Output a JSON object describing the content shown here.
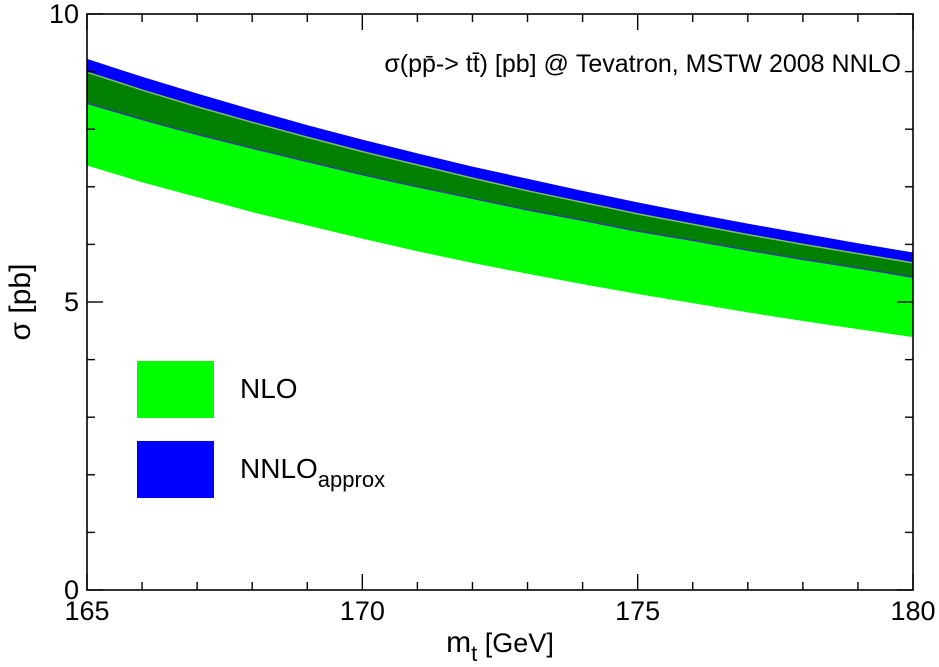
{
  "chart_data": {
    "type": "area",
    "title": "σ(pp̄-> tt̄) [pb] @ Tevatron, MSTW 2008 NNLO",
    "xlabel": {
      "main": "m",
      "sub": "t",
      "unit": " [GeV]"
    },
    "ylabel": "σ [pb]",
    "xlim": [
      165,
      180
    ],
    "ylim": [
      0,
      10
    ],
    "x_ticks": [
      165,
      170,
      175,
      180
    ],
    "x_tick_labels": [
      "165",
      "170",
      "175",
      "180"
    ],
    "y_ticks": [
      0,
      5,
      10
    ],
    "y_tick_labels": [
      "0",
      "5",
      "10"
    ],
    "x_minor_step": 1,
    "y_minor_step": 1,
    "grid": false,
    "legend_position": "left",
    "x": [
      165,
      166,
      167,
      168,
      169,
      170,
      171,
      172,
      173,
      174,
      175,
      176,
      177,
      178,
      179,
      180
    ],
    "series": [
      {
        "name": "NLO",
        "legend_label": "NLO",
        "color": "#00ff00",
        "lower": [
          7.37,
          7.08,
          6.82,
          6.56,
          6.33,
          6.1,
          5.88,
          5.68,
          5.49,
          5.31,
          5.14,
          4.98,
          4.82,
          4.67,
          4.53,
          4.39
        ],
        "upper": [
          8.45,
          8.17,
          7.91,
          7.67,
          7.44,
          7.21,
          7.0,
          6.8,
          6.6,
          6.42,
          6.23,
          6.07,
          5.9,
          5.74,
          5.59,
          5.43
        ]
      },
      {
        "name": "NNLO_approx",
        "legend_label": "NNLO",
        "legend_sub": "approx",
        "color": "#0000ff",
        "lower": [
          8.99,
          8.68,
          8.39,
          8.12,
          7.86,
          7.61,
          7.38,
          7.15,
          6.93,
          6.73,
          6.53,
          6.35,
          6.17,
          6.0,
          5.84,
          5.68
        ],
        "upper": [
          9.22,
          8.91,
          8.62,
          8.34,
          8.07,
          7.82,
          7.58,
          7.35,
          7.14,
          6.93,
          6.73,
          6.54,
          6.36,
          6.19,
          6.02,
          5.86
        ]
      }
    ],
    "overlap_color": "#008000",
    "overlap_edge_lower_color": "#3a3aa0",
    "overlap_edge_upper_color": "#80c060"
  }
}
